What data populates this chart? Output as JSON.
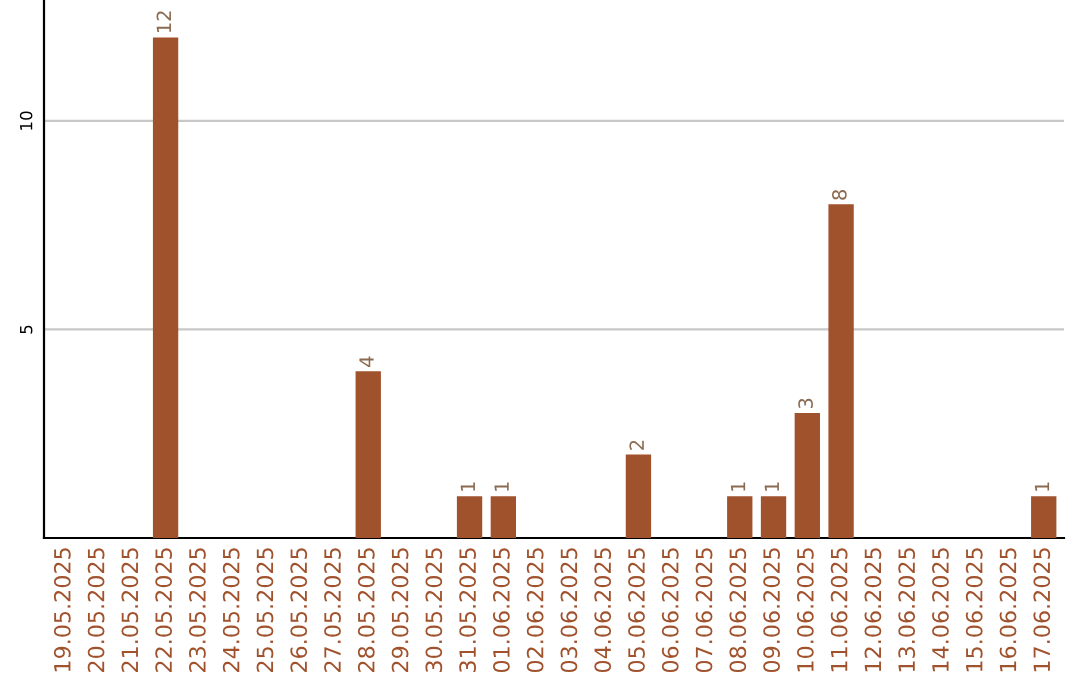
{
  "chart_data": {
    "type": "bar",
    "categories": [
      "19.05.2025",
      "20.05.2025",
      "21.05.2025",
      "22.05.2025",
      "23.05.2025",
      "24.05.2025",
      "25.05.2025",
      "26.05.2025",
      "27.05.2025",
      "28.05.2025",
      "29.05.2025",
      "30.05.2025",
      "31.05.2025",
      "01.06.2025",
      "02.06.2025",
      "03.06.2025",
      "04.06.2025",
      "05.06.2025",
      "06.06.2025",
      "07.06.2025",
      "08.06.2025",
      "09.06.2025",
      "10.06.2025",
      "11.06.2025",
      "12.06.2025",
      "13.06.2025",
      "14.06.2025",
      "15.06.2025",
      "16.06.2025",
      "17.06.2025"
    ],
    "values": [
      0,
      0,
      0,
      12,
      0,
      0,
      0,
      0,
      0,
      4,
      0,
      0,
      1,
      1,
      0,
      0,
      0,
      2,
      0,
      0,
      1,
      1,
      3,
      8,
      0,
      0,
      0,
      0,
      0,
      1
    ],
    "color": "#a0522d",
    "value_labels": [
      null,
      null,
      null,
      "12",
      null,
      null,
      null,
      null,
      null,
      "4",
      null,
      null,
      "1",
      "1",
      null,
      null,
      null,
      "2",
      null,
      null,
      "1",
      "1",
      "3",
      "8",
      null,
      null,
      null,
      null,
      null,
      "1"
    ],
    "ylim": [
      0,
      12.9
    ],
    "yticks": [
      5,
      10
    ],
    "grid": "y"
  }
}
